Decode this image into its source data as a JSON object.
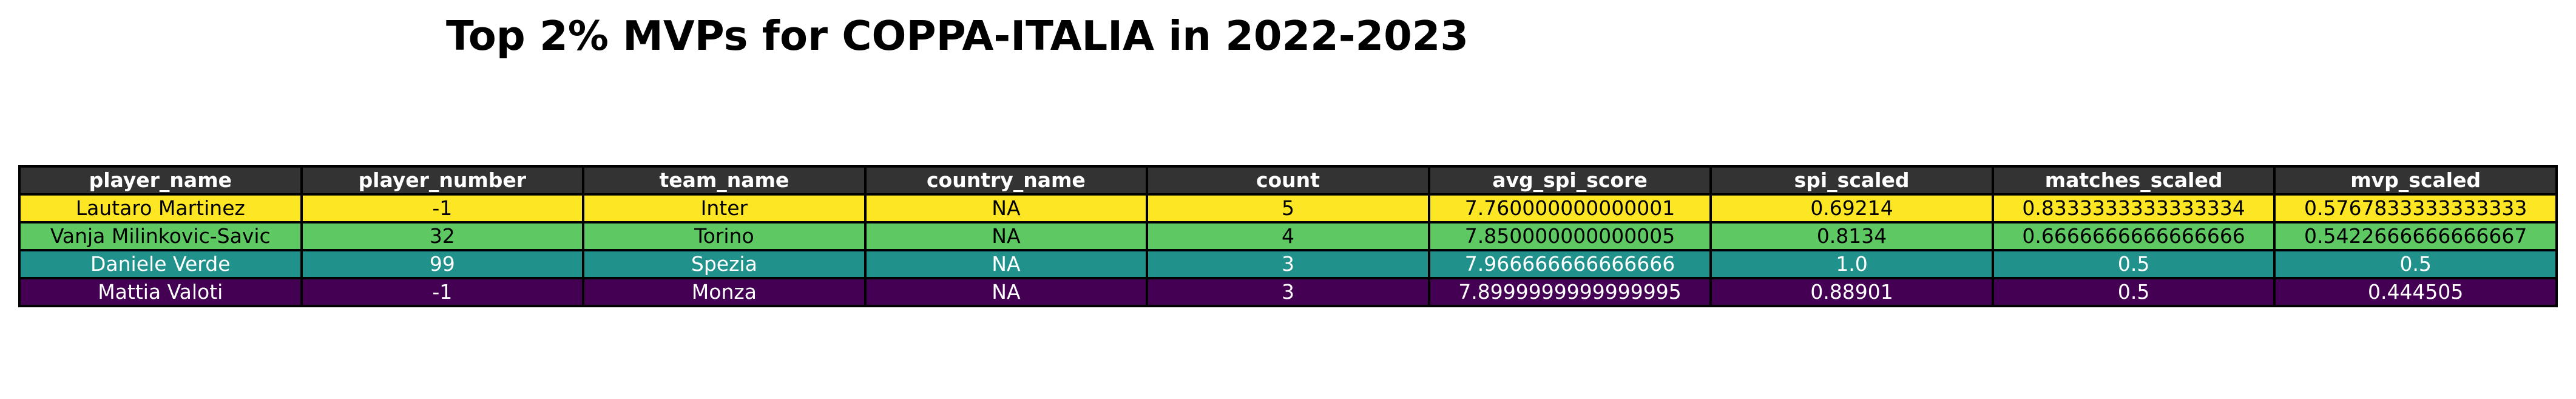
{
  "chart_data": {
    "type": "table",
    "title": "Top 2% MVPs for COPPA-ITALIA in 2022-2023",
    "columns": [
      "player_name",
      "player_number",
      "team_name",
      "country_name",
      "count",
      "avg_spi_score",
      "spi_scaled",
      "matches_scaled",
      "mvp_scaled"
    ],
    "rows": [
      {
        "cells": [
          "Lautaro Martinez",
          "-1",
          "Inter",
          "NA",
          "5",
          "7.760000000000001",
          "0.69214",
          "0.8333333333333334",
          "0.5767833333333333"
        ],
        "row_color": "#fde725",
        "text_color": "#000000"
      },
      {
        "cells": [
          "Vanja Milinkovic-Savic",
          "32",
          "Torino",
          "NA",
          "4",
          "7.850000000000005",
          "0.8134",
          "0.6666666666666666",
          "0.5422666666666667"
        ],
        "row_color": "#5ec962",
        "text_color": "#000000"
      },
      {
        "cells": [
          "Daniele Verde",
          "99",
          "Spezia",
          "NA",
          "3",
          "7.966666666666666",
          "1.0",
          "0.5",
          "0.5"
        ],
        "row_color": "#21918c",
        "text_color": "#ffffff"
      },
      {
        "cells": [
          "Mattia Valoti",
          "-1",
          "Monza",
          "NA",
          "3",
          "7.8999999999999995",
          "0.88901",
          "0.5",
          "0.444505"
        ],
        "row_color": "#440154",
        "text_color": "#ffffff"
      }
    ],
    "header_color": "#333333",
    "header_text_color": "#ffffff"
  }
}
